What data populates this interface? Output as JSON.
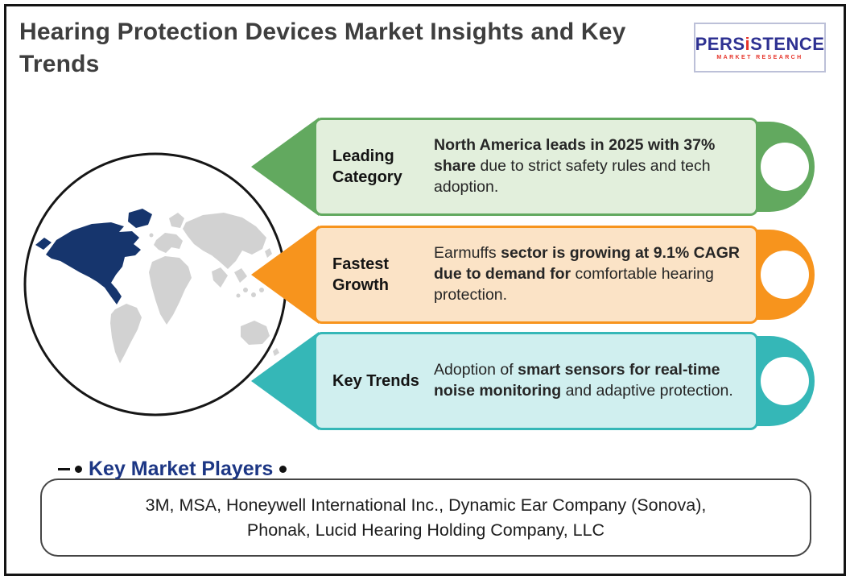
{
  "page": {
    "title": "Hearing Protection Devices Market Insights and Key Trends"
  },
  "logo": {
    "brand_pre": "PERS",
    "brand_i": "i",
    "brand_post": "STENCE",
    "subtitle": "MARKET RESEARCH",
    "brand_color": "#2e3192",
    "accent_color": "#e63329"
  },
  "map": {
    "highlight_region": "North America",
    "highlight_color": "#16356d",
    "land_color": "#d2d2d2"
  },
  "banners": [
    {
      "label": "Leading Category",
      "segments": [
        {
          "text": "North America leads in 2025 with 37% share",
          "bold": true
        },
        {
          "text": " due to strict safety rules and tech adoption.",
          "bold": false
        }
      ],
      "colors": {
        "solid": "#62a95f",
        "fill": "#e2efdc"
      }
    },
    {
      "label": "Fastest Growth",
      "segments": [
        {
          "text": "Earmuffs ",
          "bold": false
        },
        {
          "text": "sector is growing at 9.1% CAGR due to demand for",
          "bold": true
        },
        {
          "text": " comfortable hearing protection.",
          "bold": false
        }
      ],
      "colors": {
        "solid": "#f7941d",
        "fill": "#fbe3c6"
      }
    },
    {
      "label": "Key Trends",
      "segments": [
        {
          "text": "Adoption of ",
          "bold": false
        },
        {
          "text": "smart sensors for real-time noise monitoring",
          "bold": true
        },
        {
          "text": " and adaptive protection.",
          "bold": false
        }
      ],
      "colors": {
        "solid": "#35b7b7",
        "fill": "#d0efef"
      }
    }
  ],
  "players": {
    "heading": "Key Market Players",
    "companies": "3M, MSA, Honeywell International Inc., Dynamic Ear Company (Sonova), Phonak, Lucid Hearing Holding Company, LLC"
  }
}
